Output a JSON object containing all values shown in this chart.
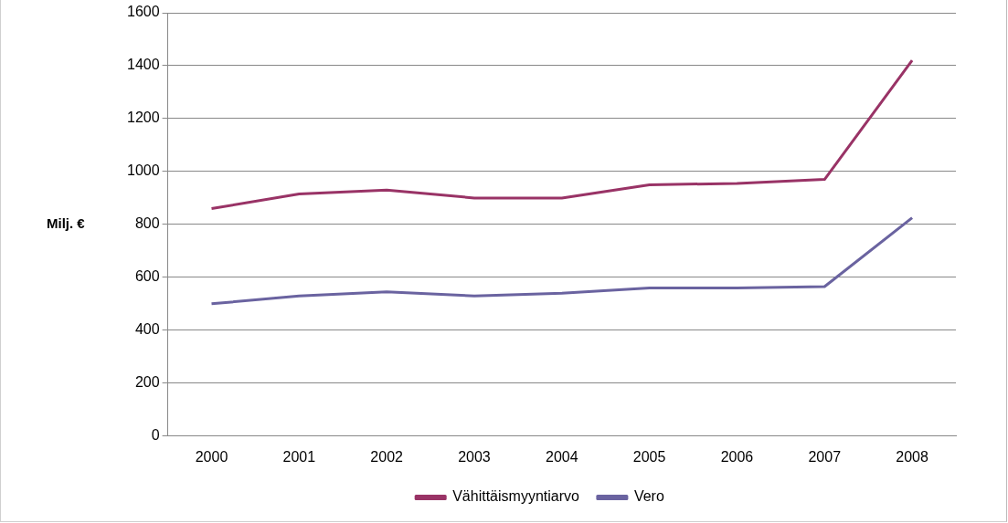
{
  "chart_data": {
    "type": "line",
    "ylabel": "Milj. €",
    "categories": [
      "2000",
      "2001",
      "2002",
      "2003",
      "2004",
      "2005",
      "2006",
      "2007",
      "2008"
    ],
    "series": [
      {
        "name": "Vähittäismyyntiarvo",
        "color": "#993366",
        "values": [
          860,
          915,
          930,
          900,
          900,
          950,
          955,
          970,
          1420
        ]
      },
      {
        "name": "Vero",
        "color": "#6a63a0",
        "values": [
          500,
          530,
          545,
          530,
          540,
          560,
          560,
          565,
          825
        ]
      }
    ],
    "ylim": [
      0,
      1600
    ],
    "yticks": [
      0,
      200,
      400,
      600,
      800,
      1000,
      1200,
      1400,
      1600
    ],
    "grid": "y",
    "legend": "bottom",
    "marker": "none",
    "line_style": "solid"
  }
}
